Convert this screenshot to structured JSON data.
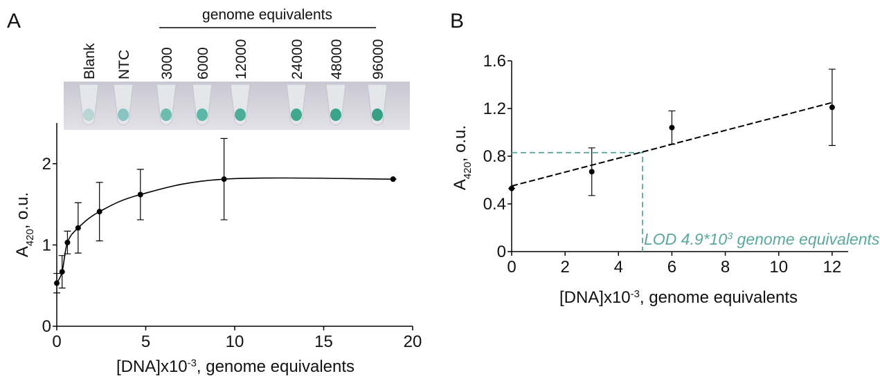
{
  "chart_data": [
    {
      "type": "scatter",
      "panel": "A",
      "image_header": "genome equivalents",
      "image_labels": [
        "Blank",
        "NTC",
        "3000",
        "6000",
        "12000",
        "24000",
        "48000",
        "96000"
      ],
      "x": [
        0,
        0.3,
        0.6,
        1.2,
        2.4,
        4.7,
        9.4,
        18.9
      ],
      "series": [
        {
          "color": "#000000",
          "values": [
            0.53,
            0.67,
            1.03,
            1.21,
            1.41,
            1.62,
            1.81,
            1.81
          ],
          "errors": [
            0.12,
            0.2,
            0.14,
            0.31,
            0.36,
            0.31,
            0.5,
            0
          ]
        }
      ],
      "smooth_line": true,
      "xlim": [
        0,
        20
      ],
      "xticks": [
        0,
        5,
        10,
        15,
        20
      ],
      "ylim": [
        0,
        2.5
      ],
      "yticks": [
        0,
        1,
        2
      ],
      "xlabel": [
        "[DNA]x10",
        "-3",
        ", genome equivalents"
      ],
      "ylabel": [
        "A",
        "420",
        ", o.u."
      ]
    },
    {
      "type": "scatter",
      "panel": "B",
      "x": [
        0,
        3,
        6,
        12
      ],
      "series": [
        {
          "color": "#000000",
          "values": [
            0.53,
            0.67,
            1.04,
            1.21
          ],
          "errors": [
            0,
            0.2,
            0.14,
            0.32
          ]
        }
      ],
      "fit": {
        "x": [
          0,
          12
        ],
        "values": [
          0.55,
          1.25
        ],
        "color": "#000000"
      },
      "lod": {
        "x": 4.9,
        "y": 0.83,
        "color": "#5aa89c",
        "label": [
          "LOD 4.9*10",
          "3",
          " genome equivalents"
        ]
      },
      "xlim": [
        0,
        12.6
      ],
      "xticks": [
        0,
        2,
        4,
        6,
        8,
        10,
        12
      ],
      "ylim": [
        0,
        1.6
      ],
      "yticks": [
        0,
        0.4,
        0.8,
        1.2,
        1.6
      ],
      "xlabel": [
        "[DNA]x10",
        "-3",
        ", genome equivalents"
      ],
      "ylabel": [
        "A",
        "420",
        ", o.u."
      ]
    }
  ]
}
